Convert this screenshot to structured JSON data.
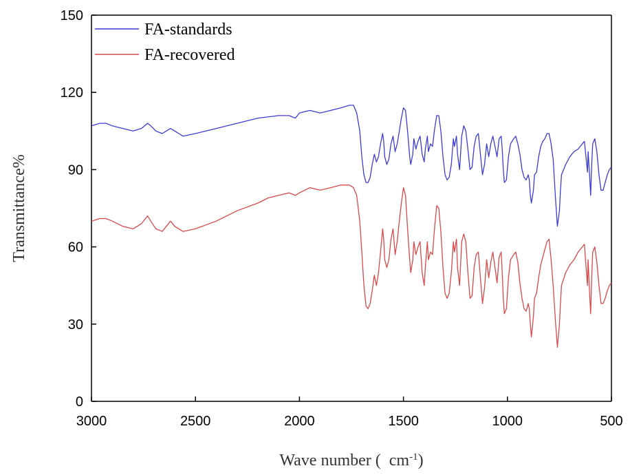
{
  "chart_data": {
    "type": "line",
    "xlabel": "Wave number (  cm",
    "xlabel_sup": "-1",
    "xlabel_close": ")",
    "ylabel": "Transmittance%",
    "xlim": [
      3000,
      500
    ],
    "ylim": [
      0,
      150
    ],
    "xticks": [
      "3000",
      "2500",
      "2000",
      "1500",
      "1000",
      "500"
    ],
    "yticks": [
      "0",
      "30",
      "60",
      "90",
      "120",
      "150"
    ],
    "grid": false,
    "legend_position": "top-left",
    "series": [
      {
        "name": "FA-standards",
        "color": "#3b3bd6",
        "points": [
          [
            3000,
            107
          ],
          [
            2960,
            108
          ],
          [
            2930,
            108
          ],
          [
            2900,
            107
          ],
          [
            2850,
            106
          ],
          [
            2800,
            105
          ],
          [
            2760,
            106
          ],
          [
            2730,
            108
          ],
          [
            2715,
            107
          ],
          [
            2690,
            105
          ],
          [
            2660,
            104
          ],
          [
            2640,
            105
          ],
          [
            2620,
            106
          ],
          [
            2600,
            105
          ],
          [
            2580,
            104
          ],
          [
            2560,
            103
          ],
          [
            2500,
            104
          ],
          [
            2400,
            106
          ],
          [
            2300,
            108
          ],
          [
            2200,
            110
          ],
          [
            2100,
            111
          ],
          [
            2050,
            111
          ],
          [
            2020,
            110
          ],
          [
            2000,
            112
          ],
          [
            1950,
            113
          ],
          [
            1900,
            112
          ],
          [
            1850,
            113
          ],
          [
            1800,
            114
          ],
          [
            1760,
            115
          ],
          [
            1740,
            115
          ],
          [
            1725,
            112
          ],
          [
            1710,
            105
          ],
          [
            1700,
            95
          ],
          [
            1690,
            88
          ],
          [
            1680,
            85
          ],
          [
            1670,
            85
          ],
          [
            1660,
            87
          ],
          [
            1650,
            92
          ],
          [
            1640,
            96
          ],
          [
            1630,
            93
          ],
          [
            1620,
            95
          ],
          [
            1610,
            100
          ],
          [
            1600,
            104
          ],
          [
            1595,
            101
          ],
          [
            1590,
            95
          ],
          [
            1580,
            92
          ],
          [
            1570,
            94
          ],
          [
            1560,
            100
          ],
          [
            1550,
            103
          ],
          [
            1540,
            97
          ],
          [
            1530,
            100
          ],
          [
            1520,
            105
          ],
          [
            1510,
            110
          ],
          [
            1500,
            114
          ],
          [
            1490,
            113
          ],
          [
            1480,
            105
          ],
          [
            1470,
            95
          ],
          [
            1465,
            92
          ],
          [
            1455,
            96
          ],
          [
            1450,
            102
          ],
          [
            1440,
            98
          ],
          [
            1430,
            101
          ],
          [
            1420,
            103
          ],
          [
            1410,
            96
          ],
          [
            1400,
            93
          ],
          [
            1395,
            98
          ],
          [
            1385,
            103
          ],
          [
            1380,
            97
          ],
          [
            1370,
            100
          ],
          [
            1360,
            99
          ],
          [
            1350,
            106
          ],
          [
            1340,
            111
          ],
          [
            1330,
            111
          ],
          [
            1320,
            105
          ],
          [
            1310,
            95
          ],
          [
            1300,
            88
          ],
          [
            1290,
            86
          ],
          [
            1280,
            87
          ],
          [
            1270,
            92
          ],
          [
            1260,
            102
          ],
          [
            1255,
            99
          ],
          [
            1245,
            103
          ],
          [
            1240,
            96
          ],
          [
            1230,
            90
          ],
          [
            1220,
            103
          ],
          [
            1210,
            107
          ],
          [
            1200,
            105
          ],
          [
            1190,
            98
          ],
          [
            1180,
            90
          ],
          [
            1170,
            91
          ],
          [
            1160,
            99
          ],
          [
            1150,
            103
          ],
          [
            1140,
            104
          ],
          [
            1130,
            96
          ],
          [
            1120,
            88
          ],
          [
            1110,
            92
          ],
          [
            1100,
            100
          ],
          [
            1090,
            95
          ],
          [
            1080,
            100
          ],
          [
            1070,
            103
          ],
          [
            1060,
            99
          ],
          [
            1050,
            95
          ],
          [
            1040,
            102
          ],
          [
            1030,
            103
          ],
          [
            1025,
            98
          ],
          [
            1020,
            90
          ],
          [
            1015,
            85
          ],
          [
            1005,
            86
          ],
          [
            995,
            95
          ],
          [
            985,
            100
          ],
          [
            970,
            102
          ],
          [
            960,
            103
          ],
          [
            950,
            100
          ],
          [
            940,
            96
          ],
          [
            930,
            90
          ],
          [
            920,
            87
          ],
          [
            910,
            86
          ],
          [
            900,
            88
          ],
          [
            895,
            86
          ],
          [
            890,
            80
          ],
          [
            885,
            77
          ],
          [
            875,
            82
          ],
          [
            870,
            88
          ],
          [
            860,
            89
          ],
          [
            850,
            95
          ],
          [
            840,
            99
          ],
          [
            830,
            101
          ],
          [
            820,
            102
          ],
          [
            810,
            104
          ],
          [
            800,
            104
          ],
          [
            790,
            100
          ],
          [
            780,
            94
          ],
          [
            770,
            80
          ],
          [
            760,
            68
          ],
          [
            750,
            74
          ],
          [
            745,
            82
          ],
          [
            740,
            88
          ],
          [
            720,
            92
          ],
          [
            700,
            95
          ],
          [
            680,
            97
          ],
          [
            660,
            98
          ],
          [
            640,
            100
          ],
          [
            630,
            101
          ],
          [
            620,
            93
          ],
          [
            615,
            89
          ],
          [
            612,
            97
          ],
          [
            605,
            88
          ],
          [
            600,
            80
          ],
          [
            595,
            92
          ],
          [
            590,
            100
          ],
          [
            580,
            102
          ],
          [
            570,
            97
          ],
          [
            560,
            88
          ],
          [
            550,
            82
          ],
          [
            540,
            82
          ],
          [
            530,
            85
          ],
          [
            520,
            88
          ],
          [
            510,
            90
          ],
          [
            500,
            91
          ]
        ]
      },
      {
        "name": "FA-recovered",
        "color": "#d94848",
        "points": [
          [
            3000,
            70
          ],
          [
            2960,
            71
          ],
          [
            2930,
            71
          ],
          [
            2900,
            70
          ],
          [
            2850,
            68
          ],
          [
            2800,
            67
          ],
          [
            2760,
            69
          ],
          [
            2730,
            72
          ],
          [
            2715,
            70
          ],
          [
            2690,
            67
          ],
          [
            2660,
            66
          ],
          [
            2640,
            68
          ],
          [
            2620,
            70
          ],
          [
            2600,
            68
          ],
          [
            2580,
            67
          ],
          [
            2560,
            66
          ],
          [
            2500,
            67
          ],
          [
            2400,
            70
          ],
          [
            2300,
            74
          ],
          [
            2200,
            77
          ],
          [
            2150,
            79
          ],
          [
            2100,
            80
          ],
          [
            2050,
            81
          ],
          [
            2020,
            80
          ],
          [
            2000,
            81
          ],
          [
            1950,
            83
          ],
          [
            1900,
            82
          ],
          [
            1850,
            83
          ],
          [
            1800,
            84
          ],
          [
            1760,
            84
          ],
          [
            1740,
            83
          ],
          [
            1725,
            80
          ],
          [
            1710,
            70
          ],
          [
            1700,
            58
          ],
          [
            1690,
            45
          ],
          [
            1680,
            37
          ],
          [
            1670,
            36
          ],
          [
            1660,
            38
          ],
          [
            1650,
            43
          ],
          [
            1640,
            49
          ],
          [
            1630,
            45
          ],
          [
            1620,
            50
          ],
          [
            1610,
            58
          ],
          [
            1600,
            67
          ],
          [
            1595,
            63
          ],
          [
            1590,
            55
          ],
          [
            1580,
            52
          ],
          [
            1570,
            55
          ],
          [
            1560,
            63
          ],
          [
            1550,
            67
          ],
          [
            1540,
            57
          ],
          [
            1530,
            62
          ],
          [
            1520,
            70
          ],
          [
            1510,
            77
          ],
          [
            1500,
            83
          ],
          [
            1490,
            80
          ],
          [
            1480,
            67
          ],
          [
            1470,
            55
          ],
          [
            1465,
            50
          ],
          [
            1455,
            55
          ],
          [
            1450,
            62
          ],
          [
            1440,
            57
          ],
          [
            1430,
            60
          ],
          [
            1420,
            62
          ],
          [
            1410,
            50
          ],
          [
            1400,
            45
          ],
          [
            1395,
            52
          ],
          [
            1385,
            62
          ],
          [
            1380,
            55
          ],
          [
            1370,
            58
          ],
          [
            1360,
            57
          ],
          [
            1350,
            68
          ],
          [
            1340,
            76
          ],
          [
            1330,
            75
          ],
          [
            1320,
            66
          ],
          [
            1310,
            52
          ],
          [
            1300,
            42
          ],
          [
            1290,
            40
          ],
          [
            1280,
            42
          ],
          [
            1270,
            50
          ],
          [
            1260,
            62
          ],
          [
            1255,
            58
          ],
          [
            1245,
            63
          ],
          [
            1240,
            52
          ],
          [
            1230,
            45
          ],
          [
            1220,
            62
          ],
          [
            1210,
            65
          ],
          [
            1200,
            62
          ],
          [
            1190,
            50
          ],
          [
            1180,
            40
          ],
          [
            1170,
            41
          ],
          [
            1160,
            52
          ],
          [
            1150,
            57
          ],
          [
            1140,
            58
          ],
          [
            1130,
            48
          ],
          [
            1120,
            38
          ],
          [
            1110,
            44
          ],
          [
            1100,
            55
          ],
          [
            1090,
            48
          ],
          [
            1080,
            54
          ],
          [
            1070,
            58
          ],
          [
            1060,
            52
          ],
          [
            1050,
            46
          ],
          [
            1040,
            56
          ],
          [
            1030,
            58
          ],
          [
            1025,
            50
          ],
          [
            1020,
            40
          ],
          [
            1015,
            34
          ],
          [
            1005,
            36
          ],
          [
            995,
            48
          ],
          [
            985,
            55
          ],
          [
            970,
            57
          ],
          [
            960,
            58
          ],
          [
            950,
            54
          ],
          [
            940,
            46
          ],
          [
            930,
            40
          ],
          [
            920,
            36
          ],
          [
            910,
            35
          ],
          [
            900,
            38
          ],
          [
            895,
            36
          ],
          [
            890,
            30
          ],
          [
            885,
            25
          ],
          [
            875,
            33
          ],
          [
            870,
            40
          ],
          [
            860,
            42
          ],
          [
            850,
            48
          ],
          [
            840,
            53
          ],
          [
            830,
            56
          ],
          [
            820,
            59
          ],
          [
            810,
            62
          ],
          [
            800,
            63
          ],
          [
            790,
            55
          ],
          [
            780,
            45
          ],
          [
            770,
            32
          ],
          [
            760,
            21
          ],
          [
            750,
            30
          ],
          [
            745,
            38
          ],
          [
            740,
            45
          ],
          [
            720,
            50
          ],
          [
            700,
            53
          ],
          [
            680,
            55
          ],
          [
            660,
            58
          ],
          [
            640,
            60
          ],
          [
            630,
            61
          ],
          [
            620,
            50
          ],
          [
            615,
            45
          ],
          [
            612,
            55
          ],
          [
            605,
            42
          ],
          [
            600,
            34
          ],
          [
            595,
            48
          ],
          [
            590,
            58
          ],
          [
            580,
            60
          ],
          [
            570,
            54
          ],
          [
            560,
            45
          ],
          [
            550,
            38
          ],
          [
            540,
            38
          ],
          [
            530,
            40
          ],
          [
            520,
            43
          ],
          [
            510,
            45
          ],
          [
            500,
            46
          ]
        ]
      }
    ]
  }
}
